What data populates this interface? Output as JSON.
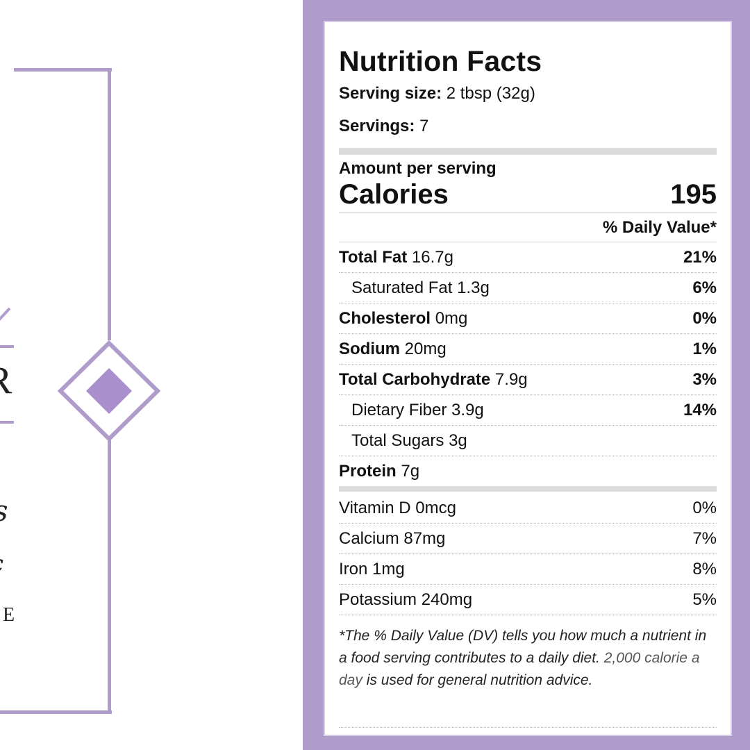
{
  "colors": {
    "accent": "#b09ccb",
    "label_border": "#d6cde4"
  },
  "left_label": {
    "cut_letter": "R",
    "cut_script_1": "s",
    "cut_script_2": "c",
    "cut_letter_small": "E"
  },
  "nutrition": {
    "title": "Nutrition Facts",
    "serving_size_label": "Serving size:",
    "serving_size_value": "2 tbsp (32g)",
    "servings_label": "Servings:",
    "servings_value": "7",
    "amount_per_serving": "Amount per serving",
    "calories_label": "Calories",
    "calories_value": "195",
    "dv_header": "% Daily Value*",
    "rows": [
      {
        "label": "Total Fat",
        "amount": "16.7g",
        "pct": "21%"
      },
      {
        "label": "Saturated Fat 1.3g",
        "pct": "6%"
      },
      {
        "label": "Cholesterol",
        "amount": "0mg",
        "pct": "0%"
      },
      {
        "label": "Sodium",
        "amount": "20mg",
        "pct": "1%"
      },
      {
        "label": "Total Carbohydrate",
        "amount": "7.9g",
        "pct": "3%"
      },
      {
        "label": "Dietary Fiber 3.9g",
        "pct": "14%"
      },
      {
        "label": "Total Sugars 3g",
        "pct": ""
      },
      {
        "label": "Protein",
        "amount": "7g",
        "pct": ""
      }
    ],
    "vitamins": [
      {
        "label": "Vitamin D 0mcg",
        "pct": "0%"
      },
      {
        "label": "Calcium 87mg",
        "pct": "7%"
      },
      {
        "label": "Iron 1mg",
        "pct": "8%"
      },
      {
        "label": "Potassium 240mg",
        "pct": "5%"
      }
    ],
    "footnote_part1": "*The % Daily Value (DV) tells you how much a nutrient in a food serving contributes to a daily diet. ",
    "footnote_soft": "2,000 calorie a day",
    "footnote_part2": " is used for general nutrition advice."
  }
}
